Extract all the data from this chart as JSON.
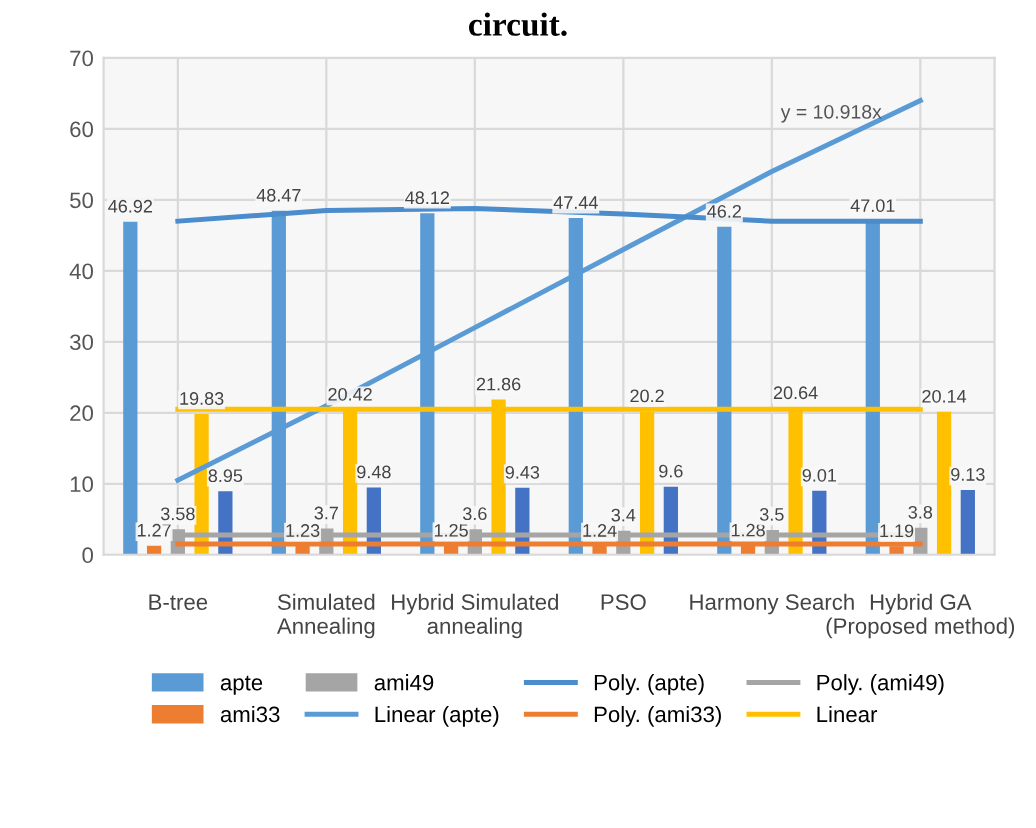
{
  "chart_data": {
    "type": "bar",
    "title": "circuit.",
    "categories": [
      "B-tree",
      "Simulated\nAnnealing",
      "Hybrid Simulated\nannealing",
      "PSO",
      "Harmony Search",
      "Hybrid GA\n(Proposed method)"
    ],
    "series": [
      {
        "name": "apte",
        "color": "#5b9bd5",
        "values": [
          46.92,
          48.47,
          48.12,
          47.44,
          46.2,
          47.01
        ],
        "value_labels": [
          "46.92",
          "48.47",
          "48.12",
          "47.44",
          "46.2",
          "47.01"
        ]
      },
      {
        "name": "ami33",
        "color": "#ed7d31",
        "values": [
          1.27,
          1.23,
          1.25,
          1.24,
          1.28,
          1.19
        ],
        "value_labels": [
          "1.27",
          "1.23",
          "1.25",
          "1.24",
          "1.28",
          "1.19"
        ]
      },
      {
        "name": "ami49",
        "color": "#a5a5a5",
        "values": [
          3.58,
          3.7,
          3.6,
          3.4,
          3.5,
          3.8
        ],
        "value_labels": [
          "3.58",
          "3.7",
          "3.6",
          "3.4",
          "3.5",
          "3.8"
        ]
      },
      {
        "color": "#ffc000",
        "values": [
          19.83,
          20.42,
          21.86,
          20.2,
          20.64,
          20.14
        ],
        "value_labels": [
          "19.83",
          "20.42",
          "21.86",
          "20.2",
          "20.64",
          "20.14"
        ]
      },
      {
        "color": "#4472c4",
        "values": [
          8.95,
          9.48,
          9.43,
          9.6,
          9.01,
          9.13
        ],
        "value_labels": [
          "8.95",
          "9.48",
          "9.43",
          "9.6",
          "9.01",
          "9.13"
        ]
      },
      {
        "name": "Linear (apte)",
        "type": "line",
        "color": "#5b9bd5",
        "values": [
          10.5,
          21,
          32,
          43,
          54,
          64
        ]
      },
      {
        "name": "Poly. (apte)",
        "type": "line",
        "color": "#4a8ccc",
        "values": [
          47,
          48.5,
          48.8,
          48,
          47,
          47
        ]
      },
      {
        "name": "Poly. (ami33)",
        "type": "line",
        "color": "#ed7d31",
        "values": [
          1.5,
          1.5,
          1.5,
          1.5,
          1.5,
          1.5
        ]
      },
      {
        "name": "Poly. (ami49)",
        "type": "line",
        "color": "#a5a5a5",
        "values": [
          2.8,
          2.8,
          2.8,
          2.8,
          2.8,
          2.8
        ]
      },
      {
        "name": "Linear",
        "type": "line",
        "color": "#ffc000",
        "values": [
          20.5,
          20.5,
          20.5,
          20.5,
          20.5,
          20.5
        ]
      }
    ],
    "ylim": [
      0,
      70
    ],
    "yticks": [
      0,
      10,
      20,
      30,
      40,
      50,
      60,
      70
    ],
    "grid": true,
    "legend": "bottom",
    "marker": "none",
    "line_style": "solid",
    "annotations": [
      "y = 10.918x"
    ]
  }
}
